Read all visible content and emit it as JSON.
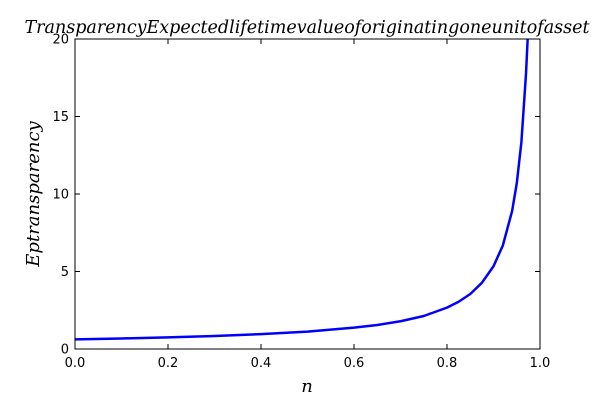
{
  "chart_data": {
    "type": "line",
    "title": "TransparencyExpectedlifetimevalueoforiginatingoneunitofasset",
    "xlabel": "n",
    "ylabel": "Eptransparency",
    "xlim": [
      0.0,
      1.0
    ],
    "ylim": [
      0,
      20
    ],
    "xticks": [
      "0.0",
      "0.2",
      "0.4",
      "0.6",
      "0.8",
      "1.0"
    ],
    "yticks": [
      "0",
      "5",
      "10",
      "15",
      "20"
    ],
    "grid": false,
    "legend": "none",
    "series": [
      {
        "color": "#0000ff",
        "x": [
          0.0,
          0.1,
          0.2,
          0.3,
          0.4,
          0.5,
          0.6,
          0.65,
          0.7,
          0.75,
          0.8,
          0.825,
          0.85,
          0.875,
          0.9,
          0.92,
          0.94,
          0.95,
          0.96,
          0.97,
          0.975
        ],
        "y": [
          0.62,
          0.68,
          0.75,
          0.84,
          0.96,
          1.12,
          1.38,
          1.55,
          1.79,
          2.13,
          2.67,
          3.05,
          3.55,
          4.27,
          5.34,
          6.67,
          8.9,
          10.68,
          13.35,
          17.8,
          21.0
        ]
      }
    ]
  }
}
